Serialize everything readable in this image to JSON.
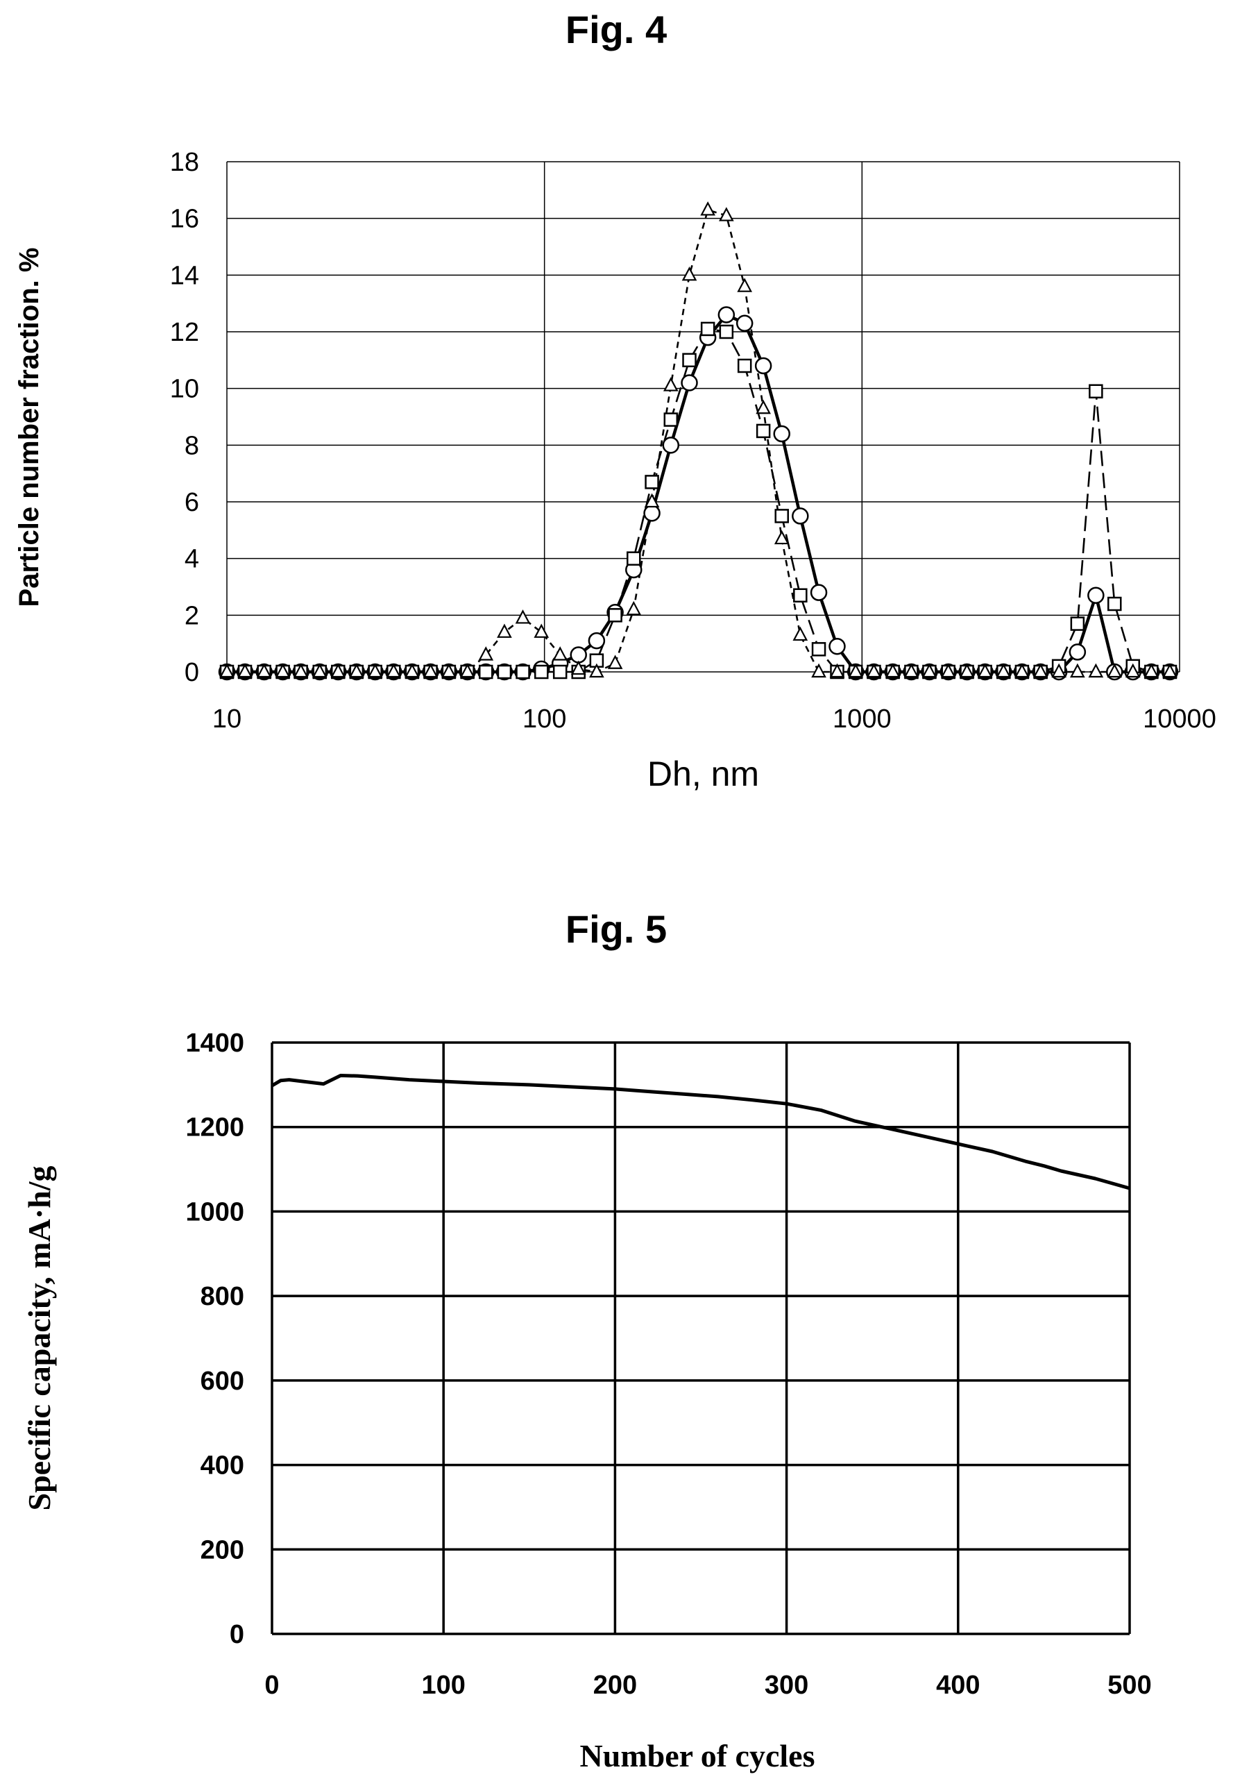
{
  "fig4": {
    "title": "Fig. 4",
    "chart_data": {
      "type": "line",
      "xlabel": "Dh, nm",
      "ylabel": "Particle number fraction. %",
      "xscale": "log",
      "xlim": [
        10,
        10000
      ],
      "ylim": [
        0,
        18
      ],
      "xticks": [
        "10",
        "100",
        "1000",
        "10000"
      ],
      "yticks": [
        "0",
        "2",
        "4",
        "6",
        "8",
        "10",
        "12",
        "14",
        "16",
        "18"
      ],
      "grid": true,
      "series": [
        {
          "marker": "circle",
          "line": "solid",
          "x": [
            10,
            11.4,
            13.1,
            15,
            17.1,
            19.6,
            22.4,
            25.6,
            29.3,
            33.5,
            38.3,
            43.8,
            50,
            57.2,
            65.4,
            74.8,
            85.5,
            97.8,
            112,
            128,
            146,
            167,
            191,
            218,
            250,
            286,
            327,
            374,
            427,
            489,
            559,
            639,
            731,
            835,
            955,
            1090,
            1250,
            1430,
            1630,
            1870,
            2140,
            2440,
            2790,
            3190,
            3650,
            4170,
            4770,
            5450,
            6240,
            7130,
            8150,
            9320
          ],
          "y": [
            0,
            0,
            0,
            0,
            0,
            0,
            0,
            0,
            0,
            0,
            0,
            0,
            0,
            0,
            0,
            0,
            0,
            0.1,
            0.3,
            0.6,
            1.1,
            2.1,
            3.6,
            5.6,
            8,
            10.2,
            11.8,
            12.6,
            12.3,
            10.8,
            8.4,
            5.5,
            2.8,
            0.9,
            0,
            0,
            0,
            0,
            0,
            0,
            0,
            0,
            0,
            0,
            0,
            0,
            0.7,
            2.7,
            0,
            0,
            0,
            0
          ]
        },
        {
          "marker": "square",
          "line": "dashed",
          "x": [
            10,
            11.4,
            13.1,
            15,
            17.1,
            19.6,
            22.4,
            25.6,
            29.3,
            33.5,
            38.3,
            43.8,
            50,
            57.2,
            65.4,
            74.8,
            85.5,
            97.8,
            112,
            128,
            146,
            167,
            191,
            218,
            250,
            286,
            327,
            374,
            427,
            489,
            559,
            639,
            731,
            835,
            955,
            1090,
            1250,
            1430,
            1630,
            1870,
            2140,
            2440,
            2790,
            3190,
            3650,
            4170,
            4770,
            5450,
            6240,
            7130,
            8150,
            9320
          ],
          "y": [
            0,
            0,
            0,
            0,
            0,
            0,
            0,
            0,
            0,
            0,
            0,
            0,
            0,
            0,
            0,
            0,
            0,
            0,
            0,
            0,
            0.4,
            2,
            4,
            6.7,
            8.9,
            11,
            12.1,
            12,
            10.8,
            8.5,
            5.5,
            2.7,
            0.8,
            0,
            0,
            0,
            0,
            0,
            0,
            0,
            0,
            0,
            0,
            0,
            0,
            0.2,
            1.7,
            9.9,
            2.4,
            0.2,
            0,
            0
          ]
        },
        {
          "marker": "triangle",
          "line": "dotted",
          "x": [
            10,
            11.4,
            13.1,
            15,
            17.1,
            19.6,
            22.4,
            25.6,
            29.3,
            33.5,
            38.3,
            43.8,
            50,
            57.2,
            65.4,
            74.8,
            85.5,
            97.8,
            112,
            128,
            146,
            167,
            191,
            218,
            250,
            286,
            327,
            374,
            427,
            489,
            559,
            639,
            731,
            835,
            955,
            1090,
            1250,
            1430,
            1630,
            1870,
            2140,
            2440,
            2790,
            3190,
            3650,
            4170,
            4770,
            5450,
            6240,
            7130,
            8150,
            9320
          ],
          "y": [
            0,
            0,
            0,
            0,
            0,
            0,
            0,
            0,
            0,
            0,
            0,
            0,
            0,
            0,
            0.6,
            1.4,
            1.9,
            1.4,
            0.6,
            0.1,
            0,
            0.3,
            2.2,
            6,
            10.1,
            14,
            16.3,
            16.1,
            13.6,
            9.3,
            4.7,
            1.3,
            0,
            0,
            0,
            0,
            0,
            0,
            0,
            0,
            0,
            0,
            0,
            0,
            0,
            0,
            0,
            0,
            0,
            0,
            0,
            0
          ]
        }
      ]
    }
  },
  "fig5": {
    "title": "Fig. 5",
    "chart_data": {
      "type": "line",
      "xlabel": "Number of cycles",
      "ylabel": "Specific capacity, mA·h/g",
      "xlim": [
        0,
        500
      ],
      "ylim": [
        0,
        1400
      ],
      "xticks": [
        "0",
        "100",
        "200",
        "300",
        "400",
        "500"
      ],
      "yticks": [
        "0",
        "200",
        "400",
        "600",
        "800",
        "1000",
        "1200",
        "1400"
      ],
      "grid": true,
      "series": [
        {
          "x": [
            0,
            5,
            10,
            20,
            30,
            40,
            50,
            60,
            80,
            100,
            120,
            150,
            180,
            200,
            220,
            240,
            260,
            280,
            300,
            320,
            340,
            360,
            380,
            400,
            420,
            440,
            450,
            460,
            480,
            500
          ],
          "y": [
            1298,
            1310,
            1312,
            1307,
            1302,
            1322,
            1321,
            1318,
            1312,
            1308,
            1304,
            1300,
            1294,
            1290,
            1284,
            1278,
            1272,
            1264,
            1255,
            1240,
            1214,
            1196,
            1178,
            1160,
            1142,
            1118,
            1108,
            1096,
            1078,
            1055
          ]
        }
      ]
    }
  }
}
